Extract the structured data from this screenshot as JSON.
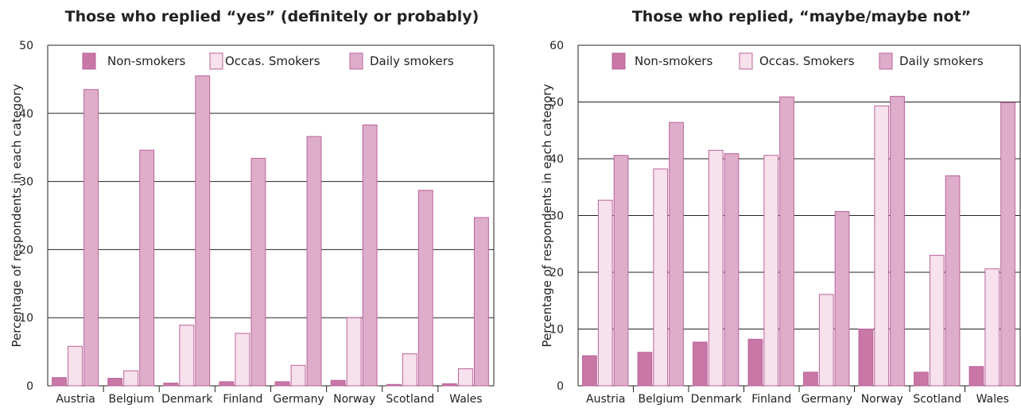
{
  "colors": {
    "non_smokers": "#c877a6",
    "occas_smokers": "#f7e1ec",
    "daily_smokers": "#deadca",
    "bar_stroke": "#b9639a",
    "grid": "#222222",
    "axis": "#222222"
  },
  "chart_data": [
    {
      "type": "bar",
      "title": "Those who replied “yes” (definitely or probably)",
      "ylabel": "Percentage of respondents in each category",
      "xlabel": "",
      "ylim": [
        0,
        50
      ],
      "yticks": [
        "0",
        "10",
        "20",
        "30",
        "40",
        "50"
      ],
      "grid": true,
      "legend_position": "top",
      "categories": [
        "Austria",
        "Belgium",
        "Denmark",
        "Finland",
        "Germany",
        "Norway",
        "Scotland",
        "Wales"
      ],
      "series": [
        {
          "name": "Non-smokers",
          "values": [
            1.2,
            1.1,
            0.4,
            0.6,
            0.6,
            0.8,
            0.2,
            0.3
          ]
        },
        {
          "name": "Occas. Smokers",
          "values": [
            5.8,
            2.2,
            8.9,
            7.7,
            3.0,
            10.0,
            4.7,
            2.5
          ]
        },
        {
          "name": "Daily smokers",
          "values": [
            43.5,
            34.6,
            45.5,
            33.4,
            36.6,
            38.3,
            28.7,
            24.7
          ]
        }
      ]
    },
    {
      "type": "bar",
      "title": "Those who replied, “maybe/maybe not”",
      "ylabel": "Percentage of respondents in each category",
      "xlabel": "",
      "ylim": [
        0,
        60
      ],
      "yticks": [
        "0",
        "10",
        "20",
        "30",
        "40",
        "50",
        "60"
      ],
      "grid": true,
      "legend_position": "top",
      "categories": [
        "Austria",
        "Belgium",
        "Denmark",
        "Finland",
        "Germany",
        "Norway",
        "Scotland",
        "Wales"
      ],
      "series": [
        {
          "name": "Non-smokers",
          "values": [
            5.3,
            5.9,
            7.7,
            8.2,
            2.4,
            10.0,
            2.4,
            3.4
          ]
        },
        {
          "name": "Occas. Smokers",
          "values": [
            32.7,
            38.2,
            41.5,
            40.6,
            16.1,
            49.3,
            23.0,
            20.6
          ]
        },
        {
          "name": "Daily smokers",
          "values": [
            40.6,
            46.4,
            40.9,
            50.9,
            30.7,
            51.0,
            37.0,
            49.9
          ]
        }
      ]
    }
  ]
}
